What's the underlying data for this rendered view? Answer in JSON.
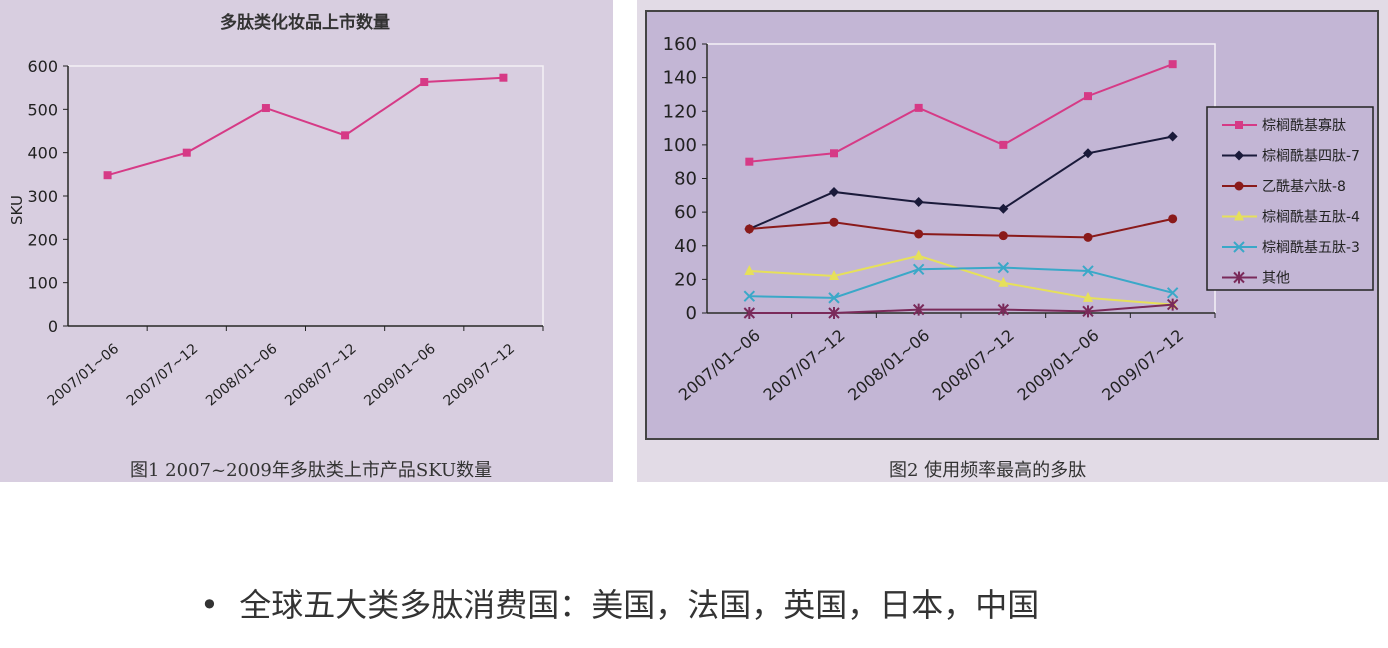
{
  "chart_data": [
    {
      "type": "line",
      "title": "多肽类化妆品上市数量",
      "xlabel": "",
      "ylabel": "SKU",
      "ylim": [
        0,
        600
      ],
      "yticks": [
        0,
        100,
        200,
        300,
        400,
        500,
        600
      ],
      "categories": [
        "2007/01~06",
        "2007/07~12",
        "2008/01~06",
        "2008/07~12",
        "2009/01~06",
        "2009/07~12"
      ],
      "series": [
        {
          "values": [
            348,
            400,
            503,
            440,
            563,
            573
          ],
          "color": "#d63a86",
          "marker": "square"
        }
      ],
      "grid": false,
      "caption": "图1 2007~2009年多肽类上市产品SKU数量"
    },
    {
      "type": "line",
      "title": "",
      "ylim": [
        0,
        160
      ],
      "yticks": [
        0,
        20,
        40,
        60,
        80,
        100,
        120,
        140,
        160
      ],
      "categories": [
        "2007/01~06",
        "2007/07~12",
        "2008/01~06",
        "2008/07~12",
        "2009/01~06",
        "2009/07~12"
      ],
      "legend": "right",
      "series": [
        {
          "name": "棕榈酰基寡肽",
          "values": [
            90,
            95,
            122,
            100,
            129,
            148
          ],
          "color": "#d63a86",
          "marker": "square"
        },
        {
          "name": "棕榈酰基四肽-7",
          "values": [
            50,
            72,
            66,
            62,
            95,
            105
          ],
          "color": "#1a1a3a",
          "marker": "diamond"
        },
        {
          "name": "乙酰基六肽-8",
          "values": [
            50,
            54,
            47,
            46,
            45,
            56
          ],
          "color": "#8a1a1a",
          "marker": "circle"
        },
        {
          "name": "棕榈酰基五肽-4",
          "values": [
            25,
            22,
            34,
            18,
            9,
            5
          ],
          "color": "#e6e05a",
          "marker": "triangle"
        },
        {
          "name": "棕榈酰基五肽-3",
          "values": [
            10,
            9,
            26,
            27,
            25,
            12
          ],
          "color": "#3aa8c8",
          "marker": "x"
        },
        {
          "name": "其他",
          "values": [
            0,
            0,
            2,
            2,
            1,
            5
          ],
          "color": "#7a2a5a",
          "marker": "star"
        }
      ],
      "grid": false,
      "caption": "图2 使用频率最高的多肽"
    }
  ],
  "bullet": "全球五大类多肽消费国：美国，法国，英国，日本，中国"
}
